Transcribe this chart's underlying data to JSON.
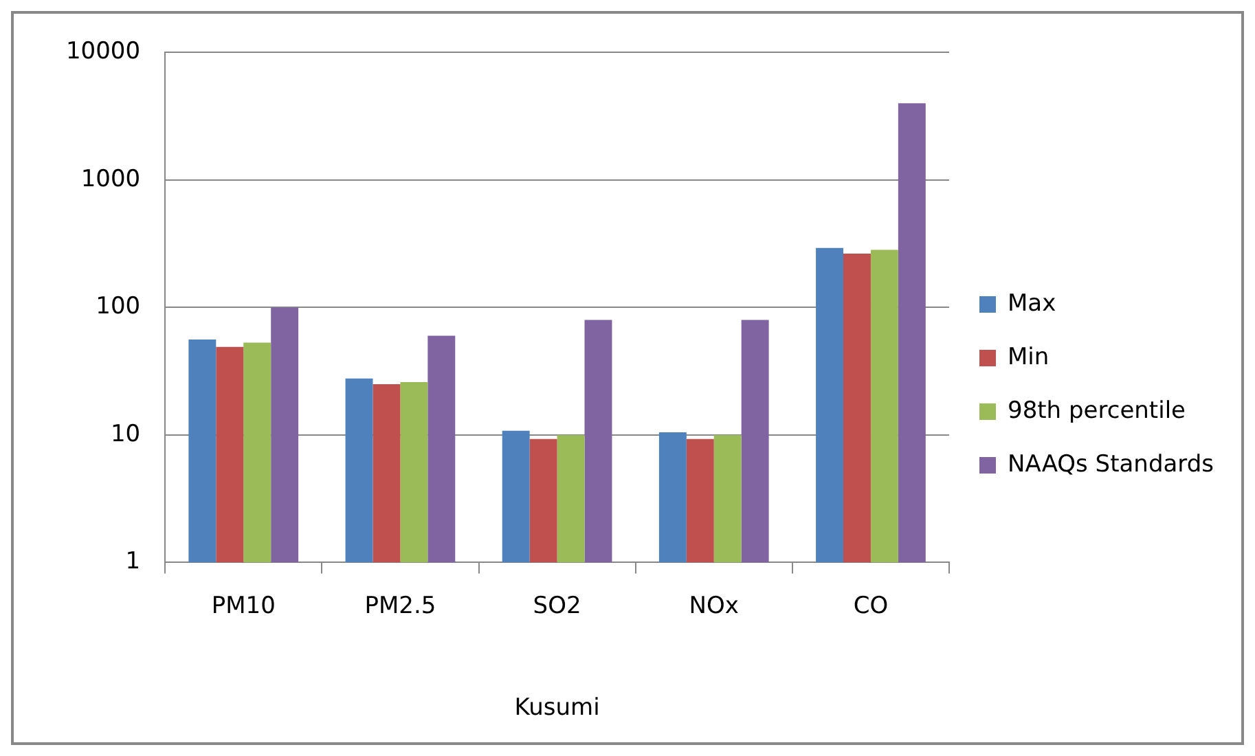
{
  "chart_data": {
    "type": "bar",
    "xlabel": "Kusumi",
    "categories": [
      "PM10",
      "PM2.5",
      "SO2",
      "NOx",
      "CO"
    ],
    "series": [
      {
        "name": "Max",
        "color": "#4f81bd",
        "values": [
          56,
          27.7,
          10.8,
          10.5,
          293
        ]
      },
      {
        "name": "Min",
        "color": "#c0504d",
        "values": [
          49,
          25,
          9.3,
          9.3,
          265
        ]
      },
      {
        "name": "98th percentile",
        "color": "#9bbb59",
        "values": [
          53,
          26,
          10,
          10,
          283
        ]
      },
      {
        "name": "NAAQs Standards",
        "color": "#8064a2",
        "values": [
          100,
          60,
          80,
          80,
          4000
        ]
      }
    ],
    "log": "y",
    "ylim": [
      1,
      10000
    ],
    "yticks": [
      1,
      10,
      100,
      1000,
      10000
    ],
    "grid": "y",
    "legend": "right"
  }
}
